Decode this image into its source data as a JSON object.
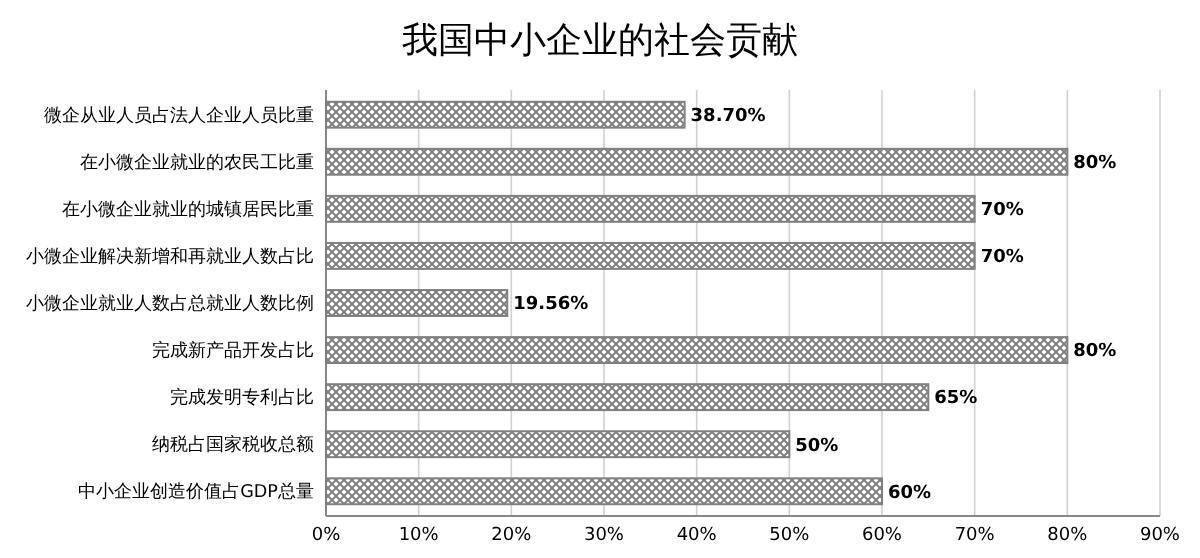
{
  "chart_data": {
    "type": "bar",
    "orientation": "horizontal",
    "title": "我国中小企业的社会贡献",
    "categories": [
      "微企从业人员占法人企业人员比重",
      "在小微企业就业的农民工比重",
      "在小微企业就业的城镇居民比重",
      "小微企业解决新增和再就业人数占比",
      "小微企业就业人数占总就业人数比例",
      "完成新产品开发占比",
      "完成发明专利占比",
      "纳税占国家税收总额",
      "中小企业创造价值占GDP总量"
    ],
    "values": [
      38.7,
      80,
      70,
      70,
      19.56,
      80,
      65,
      50,
      60
    ],
    "value_labels": [
      "38.70%",
      "80%",
      "70%",
      "70%",
      "19.56%",
      "80%",
      "65%",
      "50%",
      "60%"
    ],
    "color": "#808080",
    "xlim": [
      0,
      90
    ],
    "xticks": [
      {
        "value": 0,
        "label": "0%"
      },
      {
        "value": 10,
        "label": "10%"
      },
      {
        "value": 20,
        "label": "20%"
      },
      {
        "value": 30,
        "label": "30%"
      },
      {
        "value": 40,
        "label": "40%"
      },
      {
        "value": 50,
        "label": "50%"
      },
      {
        "value": 60,
        "label": "60%"
      },
      {
        "value": 70,
        "label": "70%"
      },
      {
        "value": 80,
        "label": "80%"
      },
      {
        "value": 90,
        "label": "90%"
      }
    ],
    "grid": "x"
  }
}
